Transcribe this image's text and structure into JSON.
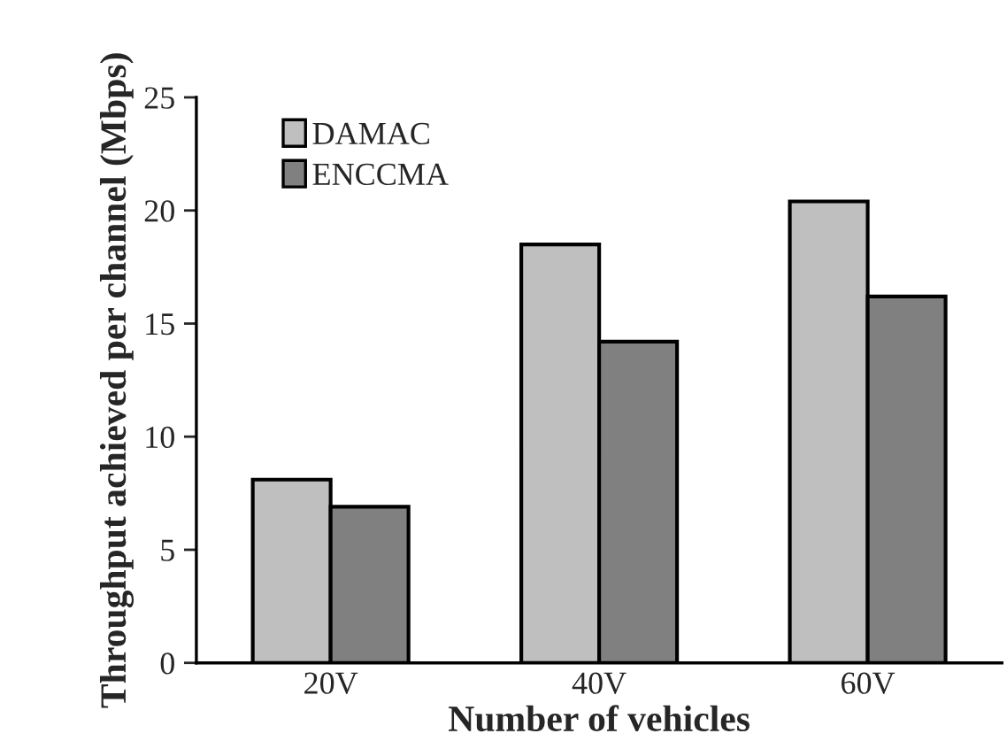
{
  "chart_data": {
    "type": "bar",
    "xlabel": "Number of vehicles",
    "ylabel": "Throughput achieved per channel (Mbps)",
    "categories": [
      "20V",
      "40V",
      "60V"
    ],
    "series": [
      {
        "name": "DAMAC",
        "color": "#bfbfbf",
        "values": [
          8.1,
          18.5,
          20.4
        ]
      },
      {
        "name": "ENCCMA",
        "color": "#808080",
        "values": [
          6.9,
          14.2,
          16.2
        ]
      }
    ],
    "ylim": [
      0,
      25
    ],
    "yticks": [
      0,
      5,
      10,
      15,
      20,
      25
    ],
    "grid": false,
    "legend": "top left"
  }
}
